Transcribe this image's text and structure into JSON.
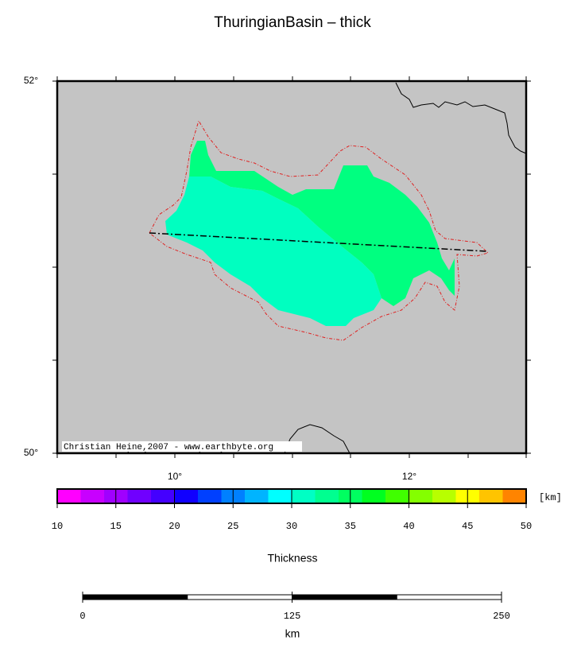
{
  "title": "ThuringianBasin – thick",
  "map": {
    "lat_labels": [
      "52°",
      "50°"
    ],
    "lon_labels": [
      "10°",
      "12°"
    ],
    "credit": "Christian Heine,2007 - www.earthbyte.org"
  },
  "colorbar": {
    "unit": "[km]",
    "ticks": [
      10,
      15,
      20,
      25,
      30,
      35,
      40,
      45,
      50
    ],
    "colors": [
      "#ff00ff",
      "#c800ff",
      "#a000ff",
      "#7000ff",
      "#4400ff",
      "#1000ff",
      "#0040ff",
      "#0080ff",
      "#00b4ff",
      "#00ffff",
      "#00ffc4",
      "#00ff90",
      "#00ff60",
      "#00ff20",
      "#40ff00",
      "#84ff00",
      "#b8ff00",
      "#ffff00",
      "#ffc400",
      "#ff8400"
    ],
    "label": "Thickness"
  },
  "scalebar": {
    "ticks": [
      0,
      125,
      250
    ],
    "unit": "km"
  }
}
